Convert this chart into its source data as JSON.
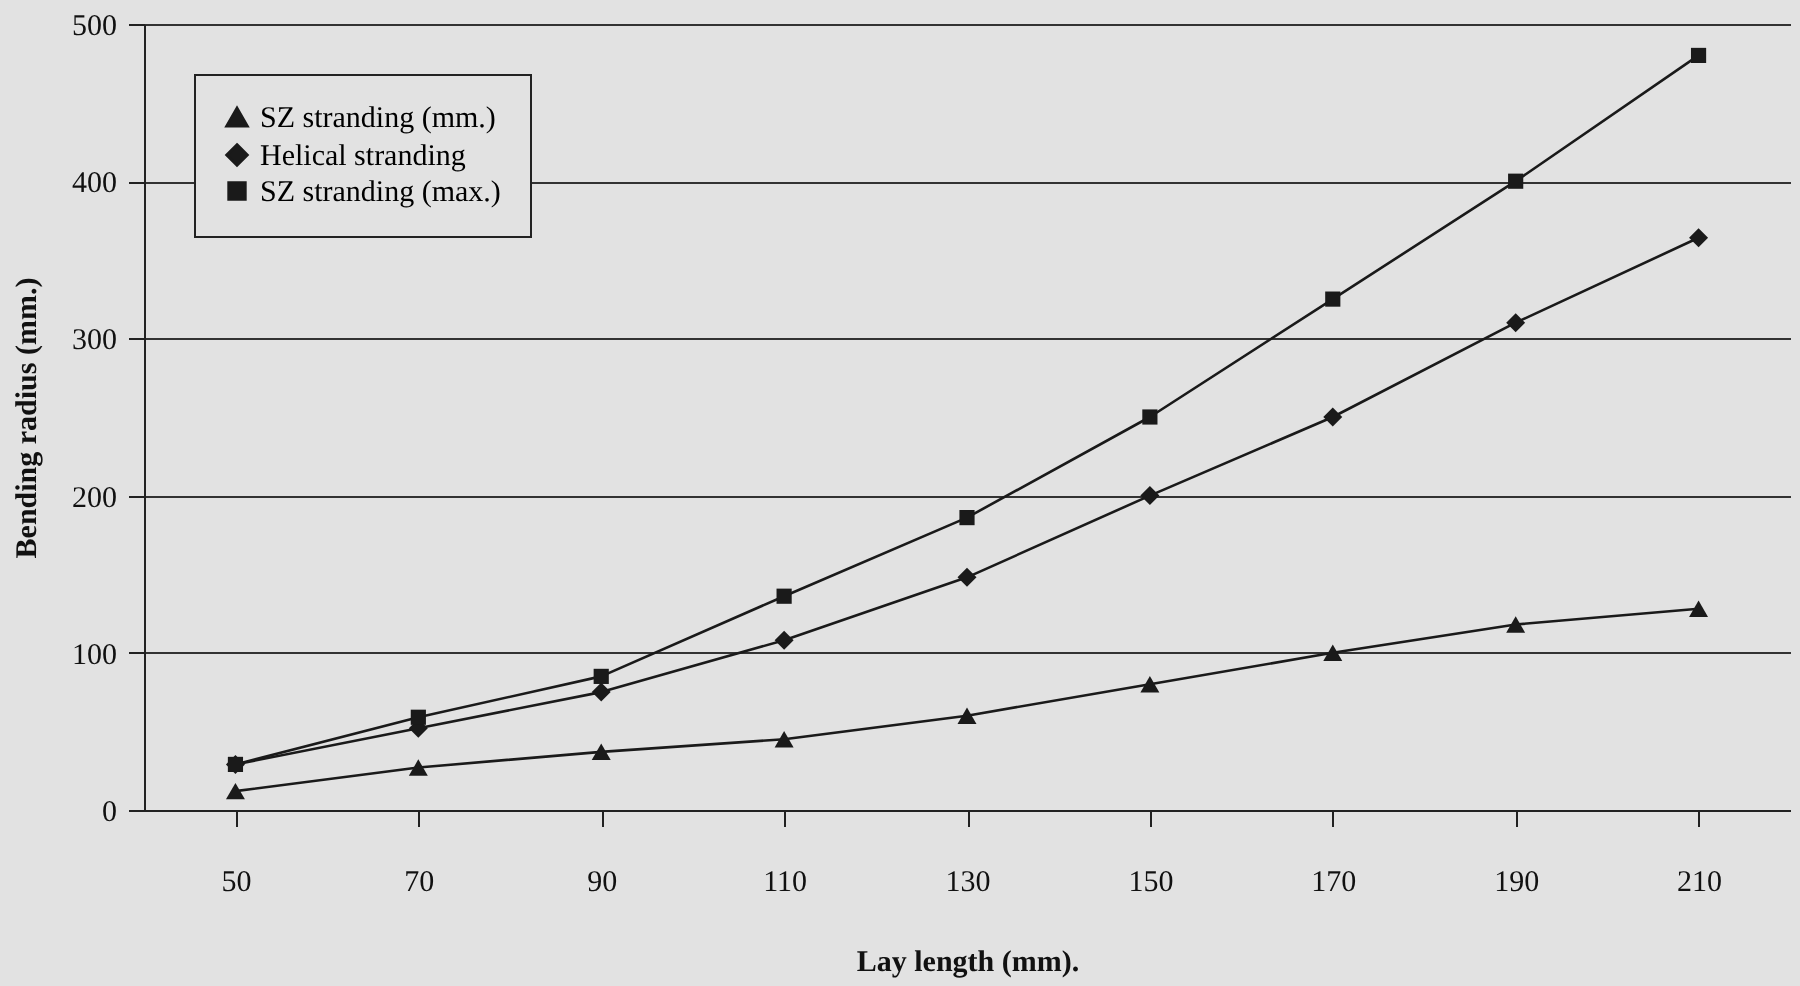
{
  "chart_data": {
    "type": "line",
    "xlabel": "Lay length (mm).",
    "ylabel": "Bending radius (mm.)",
    "categories": [
      "50",
      "70",
      "90",
      "110",
      "130",
      "150",
      "170",
      "190",
      "210"
    ],
    "series": [
      {
        "name": "SZ stranding (mm.)",
        "color": "#1a1a1a",
        "marker": "triangle",
        "values": [
          12,
          27,
          37,
          45,
          60,
          80,
          100,
          118,
          128
        ]
      },
      {
        "name": "Helical stranding",
        "color": "#1a1a1a",
        "marker": "diamond",
        "values": [
          29,
          52,
          75,
          108,
          148,
          200,
          250,
          310,
          364
        ]
      },
      {
        "name": "SZ stranding (max.)",
        "color": "#1a1a1a",
        "marker": "square",
        "values": [
          29,
          59,
          85,
          136,
          186,
          250,
          325,
          400,
          480
        ]
      }
    ],
    "ylim": [
      0,
      500
    ],
    "yticks": [
      0,
      100,
      200,
      300,
      400,
      500
    ],
    "grid": "y",
    "legend": "top left",
    "line_style": "solid"
  }
}
